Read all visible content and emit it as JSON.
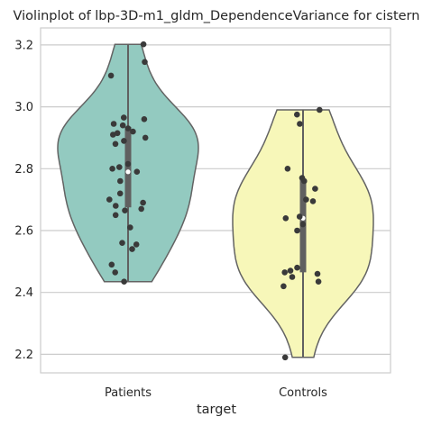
{
  "chart_data": {
    "type": "violin",
    "title": "Violinplot of lbp-3D-m1_gldm_DependenceVariance for cistern",
    "xlabel": "target",
    "ylabel": "",
    "ylim": [
      2.14,
      3.255
    ],
    "yticks": [
      2.2,
      2.4,
      2.6,
      2.8,
      3.0,
      3.2
    ],
    "ytick_labels": [
      "2.2",
      "2.4",
      "2.6",
      "2.8",
      "3.0",
      "3.2"
    ],
    "grid": true,
    "categories": [
      "Patients",
      "Controls"
    ],
    "groups": [
      {
        "name": "Patients",
        "color": "#93cac0",
        "range": [
          2.435,
          3.202
        ],
        "box": {
          "q1": 2.675,
          "median": 2.79,
          "q3": 2.935
        },
        "points": [
          3.202,
          3.145,
          3.101,
          2.965,
          2.96,
          2.945,
          2.94,
          2.93,
          2.92,
          2.915,
          2.91,
          2.9,
          2.89,
          2.88,
          2.815,
          2.805,
          2.8,
          2.79,
          2.76,
          2.72,
          2.7,
          2.69,
          2.68,
          2.67,
          2.665,
          2.65,
          2.61,
          2.56,
          2.555,
          2.54,
          2.49,
          2.465,
          2.435
        ]
      },
      {
        "name": "Controls",
        "color": "#f7f7b9",
        "range": [
          2.19,
          2.99
        ],
        "box": {
          "q1": 2.465,
          "median": 2.64,
          "q3": 2.765
        },
        "points": [
          2.99,
          2.975,
          2.945,
          2.8,
          2.77,
          2.76,
          2.735,
          2.7,
          2.695,
          2.645,
          2.64,
          2.62,
          2.6,
          2.48,
          2.47,
          2.465,
          2.46,
          2.45,
          2.435,
          2.42,
          2.19
        ]
      }
    ]
  }
}
